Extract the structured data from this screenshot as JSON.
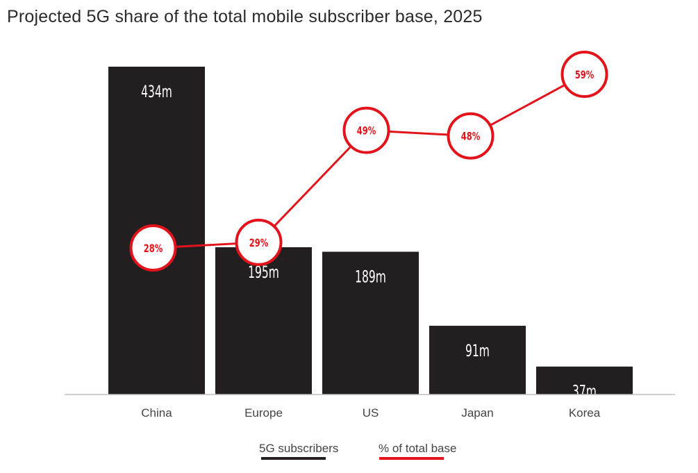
{
  "chart_data": {
    "type": "bar",
    "title": "Projected 5G share of the total mobile subscriber base, 2025",
    "categories": [
      "China",
      "Europe",
      "US",
      "Japan",
      "Korea"
    ],
    "series": [
      {
        "name": "5G subscribers",
        "values": [
          434,
          195,
          189,
          91,
          37
        ],
        "labels": [
          "434m",
          "195m",
          "189m",
          "91m",
          "37m"
        ],
        "color": "#231f20"
      },
      {
        "name": "% of total base",
        "values": [
          28,
          29,
          49,
          48,
          59
        ],
        "labels": [
          "28%",
          "29%",
          "49%",
          "48%",
          "59%"
        ],
        "color": "#e3131b"
      }
    ],
    "xlabel": "",
    "ylabel": "",
    "grid": false,
    "legend": "bottom-center"
  }
}
